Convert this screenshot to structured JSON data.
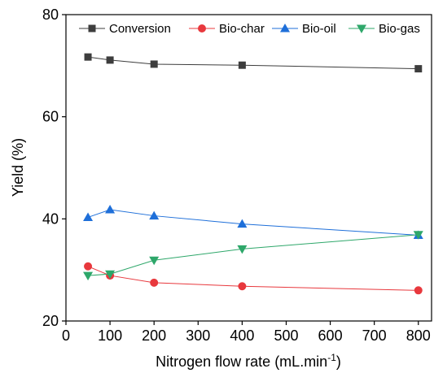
{
  "chart_data": {
    "type": "line",
    "title": "",
    "xlabel": "Nitrogen flow rate (mL.min",
    "xlabel_superscript": "-1",
    "xlabel_suffix": ")",
    "ylabel": "Yield (%)",
    "xlim": [
      0,
      830
    ],
    "ylim": [
      20,
      80
    ],
    "x_ticks": [
      0,
      100,
      200,
      300,
      400,
      500,
      600,
      700,
      800
    ],
    "y_ticks": [
      20,
      40,
      60,
      80
    ],
    "grid": false,
    "legend_position": "top",
    "x": [
      50,
      100,
      200,
      400,
      800
    ],
    "series": [
      {
        "name": "Conversion",
        "marker": "square",
        "color": "#3d3d3d",
        "values": [
          71.7,
          71.1,
          70.3,
          70.1,
          69.4
        ]
      },
      {
        "name": "Bio-char",
        "marker": "circle",
        "color": "#e8383d",
        "values": [
          30.7,
          28.9,
          27.5,
          26.8,
          26.0
        ]
      },
      {
        "name": "Bio-oil",
        "marker": "triangle-up",
        "color": "#1e6fd9",
        "values": [
          40.3,
          41.8,
          40.6,
          39.0,
          36.8
        ]
      },
      {
        "name": "Bio-gas",
        "marker": "triangle-down",
        "color": "#2ea76a",
        "values": [
          28.9,
          29.2,
          31.9,
          34.1,
          36.9
        ]
      }
    ]
  }
}
